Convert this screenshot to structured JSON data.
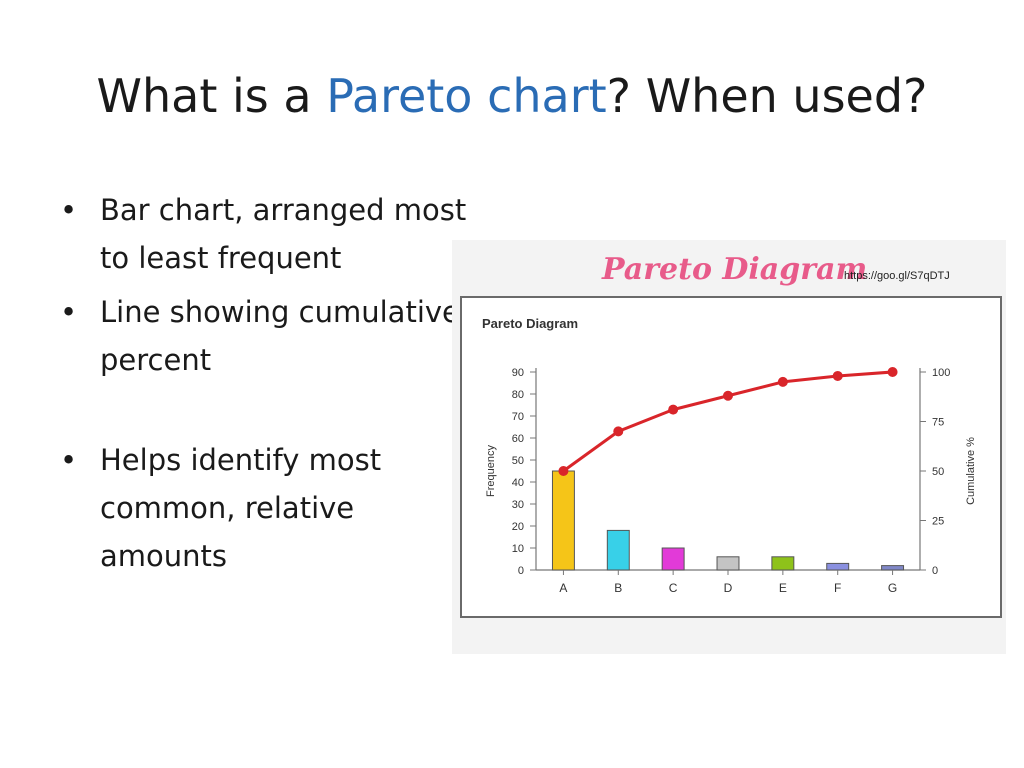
{
  "slide": {
    "title": {
      "before": "What is a ",
      "accent": "Pareto chart",
      "after": "?  When used?"
    },
    "bullets": [
      {
        "text": "Bar chart, arranged most to least frequent"
      },
      {
        "text": "Line showing cumulative percent"
      },
      {
        "text": "Helps identify most common, relative amounts"
      }
    ],
    "bullet_symbol": "•"
  },
  "figure": {
    "heading": "Pareto Diagram",
    "source_url": "https://goo.gl/S7qDTJ"
  },
  "colors": {
    "title_accent": "#2a6cb5",
    "figure_heading": "#e85b8a",
    "cumulative_line": "#d9252a"
  },
  "chart_data": {
    "type": "bar",
    "title": "Pareto Diagram",
    "xlabel": "",
    "ylabel": "Frequency",
    "y2label": "Cumulative %",
    "categories": [
      "A",
      "B",
      "C",
      "D",
      "E",
      "F",
      "G"
    ],
    "values": [
      45,
      18,
      10,
      6,
      6,
      3,
      2
    ],
    "bar_colors": [
      "#f5c518",
      "#38d0e8",
      "#e23ad8",
      "#c4c4c4",
      "#8ec21a",
      "#8a90e0",
      "#8088c8"
    ],
    "ylim": [
      0,
      90
    ],
    "yticks": [
      0,
      10,
      20,
      30,
      40,
      50,
      60,
      70,
      80,
      90
    ],
    "cumulative": [
      50,
      70,
      81,
      88,
      95,
      98,
      100
    ],
    "y2lim": [
      0,
      100
    ],
    "y2ticks": [
      0,
      25,
      50,
      75,
      100
    ],
    "grid": false
  }
}
